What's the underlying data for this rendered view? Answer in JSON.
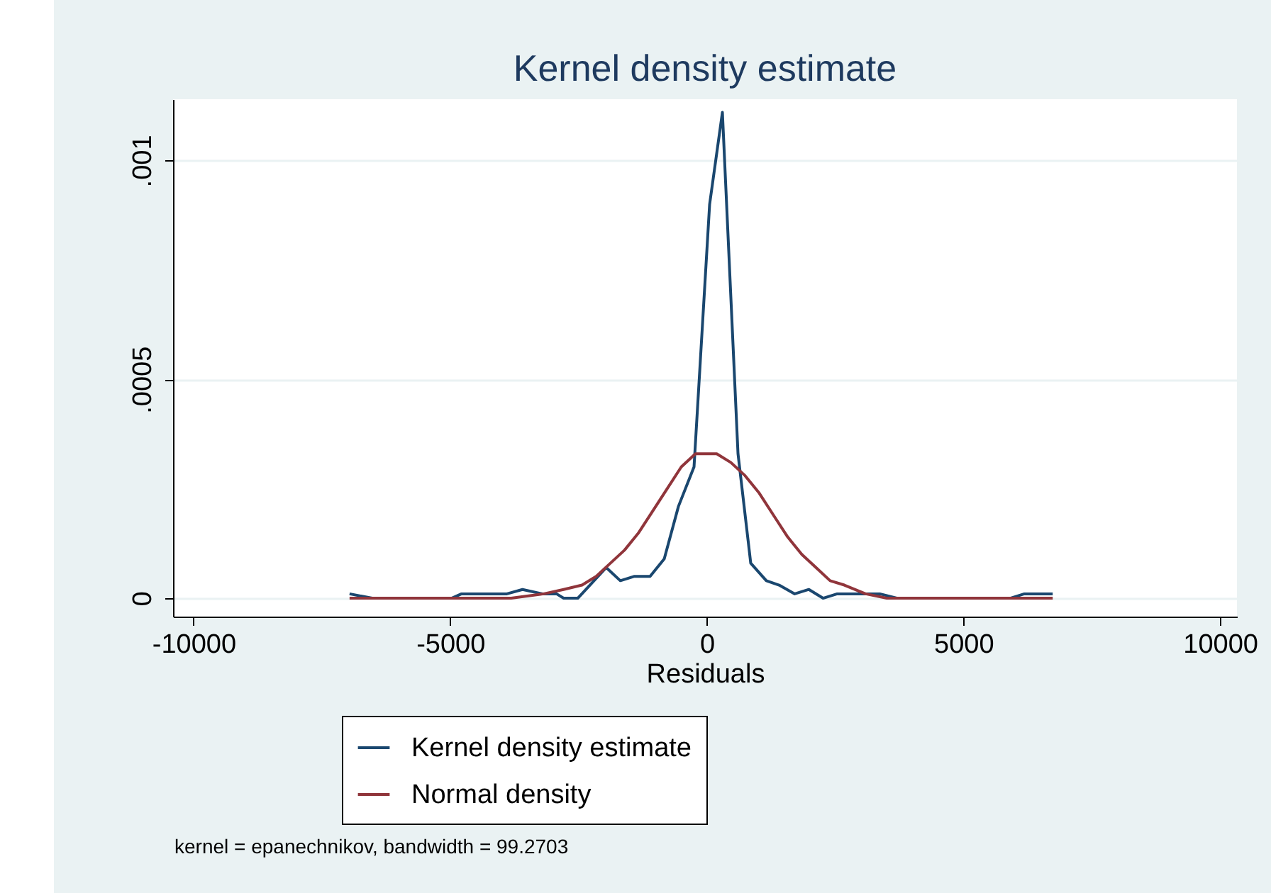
{
  "chart_data": {
    "type": "line",
    "title": "Kernel density estimate",
    "xlabel": "Residuals",
    "xlim": [
      -10400,
      10330
    ],
    "ylim": [
      -4.2e-05,
      0.00114
    ],
    "xticks": [
      -10000,
      -5000,
      0,
      5000,
      10000
    ],
    "yticks": [
      {
        "value": 0,
        "label": "0"
      },
      {
        "value": 0.0005,
        "label": ".0005"
      },
      {
        "value": 0.001,
        "label": ".001"
      }
    ],
    "grid": "y",
    "legend": "bottom",
    "annotations": [
      "kernel = epanechnikov, bandwidth = 99.2703"
    ],
    "series": [
      {
        "name": "Kernel density estimate",
        "color": "#1a476f",
        "x": [
          -6961,
          -6519,
          -4972,
          -4779,
          -4365,
          -3895,
          -3591,
          -3204,
          -2928,
          -2790,
          -2514,
          -1961,
          -1685,
          -1409,
          -1105,
          -829,
          -552,
          -249,
          55,
          304,
          608,
          856,
          1160,
          1409,
          1713,
          1989,
          2265,
          2541,
          3094,
          3370,
          3702,
          5912,
          6188,
          6740
        ],
        "values": [
          1e-05,
          0,
          0,
          1e-05,
          1e-05,
          1e-05,
          2e-05,
          1e-05,
          1e-05,
          0,
          0,
          7e-05,
          4e-05,
          5e-05,
          5e-05,
          9e-05,
          0.00021,
          0.0003,
          0.0009,
          0.00111,
          0.00033,
          8e-05,
          4e-05,
          3e-05,
          1e-05,
          2e-05,
          0,
          1e-05,
          1e-05,
          1e-05,
          0,
          0,
          1e-05,
          1e-05
        ]
      },
      {
        "name": "Normal density",
        "color": "#90353b",
        "x": [
          -6961,
          -4972,
          -3812,
          -3177,
          -2790,
          -2431,
          -2155,
          -1878,
          -1602,
          -1326,
          -1050,
          -773,
          -497,
          -221,
          -28,
          193,
          470,
          746,
          1022,
          1298,
          1575,
          1851,
          2127,
          2403,
          2680,
          3094,
          3508,
          4199,
          6740
        ],
        "values": [
          0,
          0,
          0,
          1e-05,
          2e-05,
          3e-05,
          5e-05,
          8e-05,
          0.00011,
          0.00015,
          0.0002,
          0.00025,
          0.0003,
          0.00033,
          0.00033,
          0.00033,
          0.00031,
          0.00028,
          0.00024,
          0.00019,
          0.00014,
          0.0001,
          7e-05,
          4e-05,
          3e-05,
          1e-05,
          0,
          0,
          0
        ]
      }
    ]
  }
}
